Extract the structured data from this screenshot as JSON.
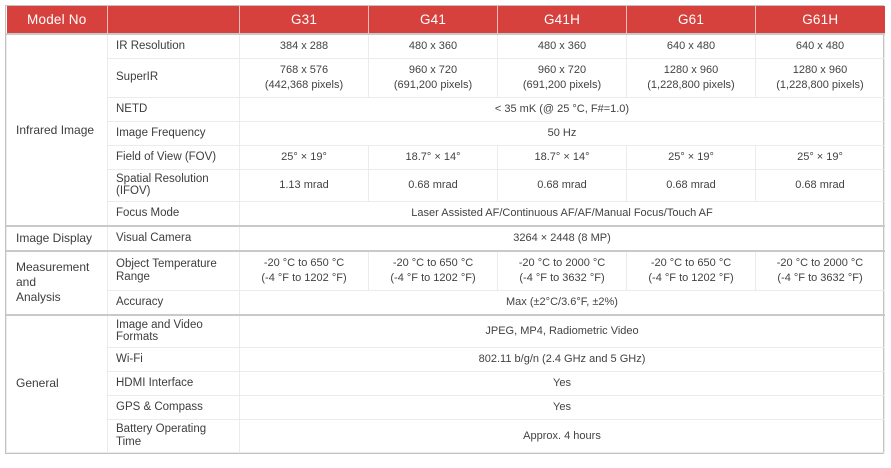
{
  "colors": {
    "header_bg": "#d7413d",
    "header_text": "#ffffff",
    "border_strong": "#c2c2c2",
    "border_light": "#ebebeb",
    "body_text": "#3d3d3d"
  },
  "table": {
    "header": {
      "model_label": "Model No",
      "models": [
        "G31",
        "G41",
        "G41H",
        "G61",
        "G61H"
      ]
    },
    "sections": [
      {
        "name": "Infrared Image",
        "rows": [
          {
            "label": "IR Resolution",
            "values": [
              "384 x 288",
              "480 x 360",
              "480 x 360",
              "640 x 480",
              "640 x 480"
            ]
          },
          {
            "label": "SuperIR",
            "values": [
              {
                "l1": "768 x 576",
                "l2": "(442,368 pixels)"
              },
              {
                "l1": "960 x 720",
                "l2": "(691,200 pixels)"
              },
              {
                "l1": "960 x 720",
                "l2": "(691,200 pixels)"
              },
              {
                "l1": "1280 x 960",
                "l2": "(1,228,800 pixels)"
              },
              {
                "l1": "1280 x 960",
                "l2": "(1,228,800 pixels)"
              }
            ]
          },
          {
            "label": "NETD",
            "value": "< 35 mK (@ 25 °C, F#=1.0)"
          },
          {
            "label": "Image Frequency",
            "value": "50 Hz"
          },
          {
            "label": "Field of View (FOV)",
            "values": [
              "25° × 19°",
              "18.7° × 14°",
              "18.7° × 14°",
              "25° × 19°",
              "25° × 19°"
            ]
          },
          {
            "label": "Spatial Resolution (IFOV)",
            "values": [
              "1.13 mrad",
              "0.68 mrad",
              "0.68 mrad",
              "0.68 mrad",
              "0.68 mrad"
            ]
          },
          {
            "label": "Focus Mode",
            "value": "Laser Assisted AF/Continuous AF/AF/Manual Focus/Touch AF"
          }
        ]
      },
      {
        "name": "Image Display",
        "rows": [
          {
            "label": "Visual Camera",
            "value": "3264 × 2448 (8 MP)"
          }
        ]
      },
      {
        "name": "Measurement\nand\nAnalysis",
        "rows": [
          {
            "label": "Object Temperature Range",
            "values": [
              {
                "l1": "-20 °C to 650 °C",
                "l2": "(-4 °F to 1202 °F)"
              },
              {
                "l1": "-20 °C to 650 °C",
                "l2": "(-4 °F to 1202 °F)"
              },
              {
                "l1": "-20 °C to 2000 °C",
                "l2": "(-4 °F to 3632 °F)"
              },
              {
                "l1": "-20 °C to 650 °C",
                "l2": "(-4 °F to 1202 °F)"
              },
              {
                "l1": "-20 °C to 2000 °C",
                "l2": "(-4 °F to 3632 °F)"
              }
            ]
          },
          {
            "label": "Accuracy",
            "value": "Max (±2°C/3.6°F, ±2%)"
          }
        ]
      },
      {
        "name": "General",
        "rows": [
          {
            "label": "Image and Video Formats",
            "value": "JPEG, MP4, Radiometric Video"
          },
          {
            "label": "Wi-Fi",
            "value": "802.11 b/g/n (2.4 GHz and 5 GHz)"
          },
          {
            "label": "HDMI Interface",
            "value": "Yes"
          },
          {
            "label": "GPS & Compass",
            "value": "Yes"
          },
          {
            "label": "Battery Operating Time",
            "value": "Approx. 4 hours"
          }
        ]
      }
    ]
  }
}
